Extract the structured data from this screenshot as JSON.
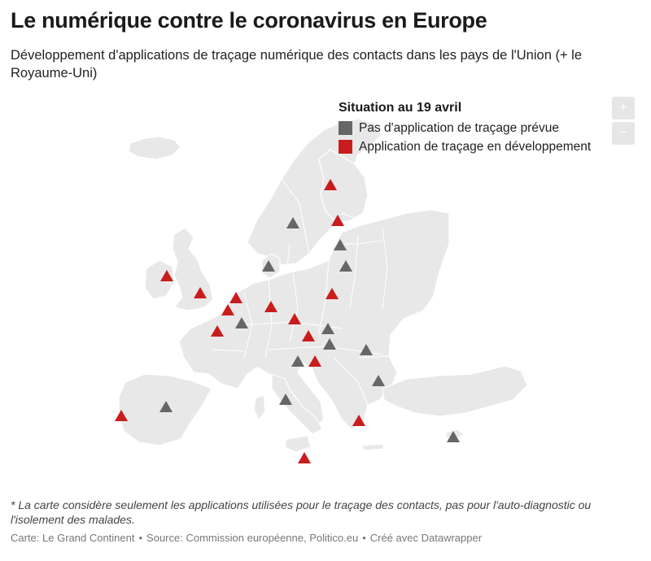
{
  "title": "Le numérique contre le coronavirus en Europe",
  "subtitle": "Développement d'applications de traçage numérique des contacts dans les pays de l'Union (+ le Royaume-Uni)",
  "legend": {
    "title": "Situation au 19 avril",
    "items": [
      {
        "label": "Pas d'application de traçage prévue",
        "color": "#666666",
        "status": "none"
      },
      {
        "label": "Application de traçage en développement",
        "color": "#c91d1d",
        "status": "dev"
      }
    ]
  },
  "zoom": {
    "in_label": "+",
    "out_label": "−"
  },
  "map_colors": {
    "land": "#e8e8e8",
    "border": "#ffffff",
    "none": "#666666",
    "dev": "#c91d1d"
  },
  "markers": [
    {
      "status": "dev"
    },
    {
      "status": "none"
    },
    {
      "status": "dev"
    },
    {
      "status": "none"
    },
    {
      "status": "none"
    },
    {
      "status": "none"
    },
    {
      "status": "dev"
    },
    {
      "status": "dev"
    },
    {
      "status": "dev"
    },
    {
      "status": "dev"
    },
    {
      "status": "dev"
    },
    {
      "status": "dev"
    },
    {
      "status": "none"
    },
    {
      "status": "dev"
    },
    {
      "status": "dev"
    },
    {
      "status": "dev"
    },
    {
      "status": "none"
    },
    {
      "status": "dev"
    },
    {
      "status": "none"
    },
    {
      "status": "none"
    },
    {
      "status": "none"
    },
    {
      "status": "none"
    },
    {
      "status": "dev"
    },
    {
      "status": "none"
    },
    {
      "status": "none"
    },
    {
      "status": "dev"
    },
    {
      "status": "none"
    },
    {
      "status": "dev"
    },
    {
      "status": "none"
    }
  ],
  "footnote": "* La carte considère seulement les applications utilisées pour le traçage des contacts, pas pour l'auto-diagnostic ou l'isolement des malades.",
  "credits": {
    "map": "Carte: Le Grand Continent",
    "source": "Source: Commission européenne, Politico.eu",
    "made_with": "Créé avec Datawrapper",
    "separator": "•"
  }
}
